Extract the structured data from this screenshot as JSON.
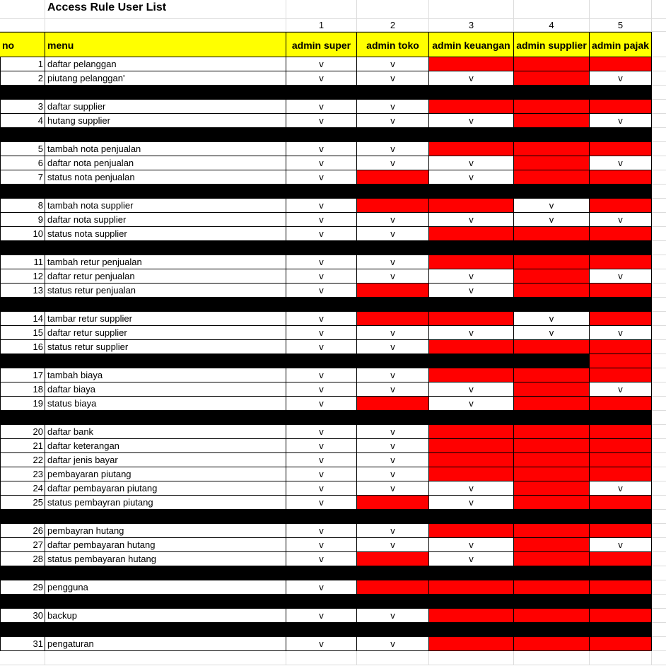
{
  "title": "Access Rule User List",
  "column_numbers": [
    "1",
    "2",
    "3",
    "4",
    "5"
  ],
  "headers": {
    "no": "no",
    "menu": "menu",
    "roles": [
      "admin super",
      "admin toko",
      "admin keuangan",
      "admin supplier",
      "admin pajak"
    ]
  },
  "colors": {
    "header": "#ffff00",
    "denied": "#ff0000",
    "separator": "#000000"
  },
  "rows": [
    {
      "type": "item",
      "no": "1",
      "menu": "daftar pelanggan",
      "perms": [
        "v",
        "v",
        "x",
        "x",
        "x"
      ]
    },
    {
      "type": "item",
      "no": "2",
      "menu": "piutang pelanggan'",
      "perms": [
        "v",
        "v",
        "v",
        "x",
        "v"
      ]
    },
    {
      "type": "sep"
    },
    {
      "type": "item",
      "no": "3",
      "menu": "daftar supplier",
      "perms": [
        "v",
        "v",
        "x",
        "x",
        "x"
      ]
    },
    {
      "type": "item",
      "no": "4",
      "menu": "hutang supplier",
      "perms": [
        "v",
        "v",
        "v",
        "x",
        "v"
      ]
    },
    {
      "type": "sep"
    },
    {
      "type": "item",
      "no": "5",
      "menu": "tambah nota penjualan",
      "perms": [
        "v",
        "v",
        "x",
        "x",
        "x"
      ]
    },
    {
      "type": "item",
      "no": "6",
      "menu": "daftar nota penjualan",
      "perms": [
        "v",
        "v",
        "v",
        "x",
        "v"
      ]
    },
    {
      "type": "item",
      "no": "7",
      "menu": "status nota penjualan",
      "perms": [
        "v",
        "x",
        "v",
        "x",
        "x"
      ]
    },
    {
      "type": "sep"
    },
    {
      "type": "item",
      "no": "8",
      "menu": "tambah nota supplier",
      "perms": [
        "v",
        "x",
        "x",
        "v",
        "x"
      ]
    },
    {
      "type": "item",
      "no": "9",
      "menu": "daftar nota supplier",
      "perms": [
        "v",
        "v",
        "v",
        "v",
        "v"
      ]
    },
    {
      "type": "item",
      "no": "10",
      "menu": "status nota supplier",
      "perms": [
        "v",
        "v",
        "x",
        "x",
        "x"
      ]
    },
    {
      "type": "sep"
    },
    {
      "type": "item",
      "no": "11",
      "menu": "tambah retur penjualan",
      "perms": [
        "v",
        "v",
        "x",
        "x",
        "x"
      ]
    },
    {
      "type": "item",
      "no": "12",
      "menu": "daftar retur penjualan",
      "perms": [
        "v",
        "v",
        "v",
        "x",
        "v"
      ]
    },
    {
      "type": "item",
      "no": "13",
      "menu": "status retur penjualan",
      "perms": [
        "v",
        "x",
        "v",
        "x",
        "x"
      ]
    },
    {
      "type": "sep"
    },
    {
      "type": "item",
      "no": "14",
      "menu": "tambar retur supplier",
      "perms": [
        "v",
        "x",
        "x",
        "v",
        "x"
      ]
    },
    {
      "type": "item",
      "no": "15",
      "menu": "daftar retur supplier",
      "perms": [
        "v",
        "v",
        "v",
        "v",
        "v"
      ]
    },
    {
      "type": "item",
      "no": "16",
      "menu": "status retur supplier",
      "perms": [
        "v",
        "v",
        "x",
        "x",
        "x"
      ]
    },
    {
      "type": "sep",
      "last_red": true
    },
    {
      "type": "item",
      "no": "17",
      "menu": "tambah biaya",
      "perms": [
        "v",
        "v",
        "x",
        "x",
        "x"
      ]
    },
    {
      "type": "item",
      "no": "18",
      "menu": "daftar biaya",
      "perms": [
        "v",
        "v",
        "v",
        "x",
        "v"
      ]
    },
    {
      "type": "item",
      "no": "19",
      "menu": "status biaya",
      "perms": [
        "v",
        "x",
        "v",
        "x",
        "x"
      ]
    },
    {
      "type": "sep"
    },
    {
      "type": "item",
      "no": "20",
      "menu": "daftar bank",
      "perms": [
        "v",
        "v",
        "x",
        "x",
        "x"
      ]
    },
    {
      "type": "item",
      "no": "21",
      "menu": "daftar keterangan",
      "perms": [
        "v",
        "v",
        "x",
        "x",
        "x"
      ]
    },
    {
      "type": "item",
      "no": "22",
      "menu": "daftar jenis bayar",
      "perms": [
        "v",
        "v",
        "x",
        "x",
        "x"
      ]
    },
    {
      "type": "item",
      "no": "23",
      "menu": "pembayaran piutang",
      "perms": [
        "v",
        "v",
        "x",
        "x",
        "x"
      ]
    },
    {
      "type": "item",
      "no": "24",
      "menu": "daftar pembayaran piutang",
      "perms": [
        "v",
        "v",
        "v",
        "x",
        "v"
      ]
    },
    {
      "type": "item",
      "no": "25",
      "menu": "status pembayran piutang",
      "perms": [
        "v",
        "x",
        "v",
        "x",
        "x"
      ]
    },
    {
      "type": "sep"
    },
    {
      "type": "item",
      "no": "26",
      "menu": "pembayran hutang",
      "perms": [
        "v",
        "v",
        "x",
        "x",
        "x"
      ]
    },
    {
      "type": "item",
      "no": "27",
      "menu": "daftar pembayaran hutang",
      "perms": [
        "v",
        "v",
        "v",
        "x",
        "v"
      ]
    },
    {
      "type": "item",
      "no": "28",
      "menu": "status pembayaran hutang",
      "perms": [
        "v",
        "x",
        "v",
        "x",
        "x"
      ]
    },
    {
      "type": "sep"
    },
    {
      "type": "item",
      "no": "29",
      "menu": "pengguna",
      "perms": [
        "v",
        "x",
        "x",
        "x",
        "x"
      ]
    },
    {
      "type": "sep"
    },
    {
      "type": "item",
      "no": "30",
      "menu": "backup",
      "perms": [
        "v",
        "v",
        "x",
        "x",
        "x"
      ]
    },
    {
      "type": "sep"
    },
    {
      "type": "item",
      "no": "31",
      "menu": "pengaturan",
      "perms": [
        "v",
        "v",
        "x",
        "x",
        "x"
      ]
    }
  ]
}
